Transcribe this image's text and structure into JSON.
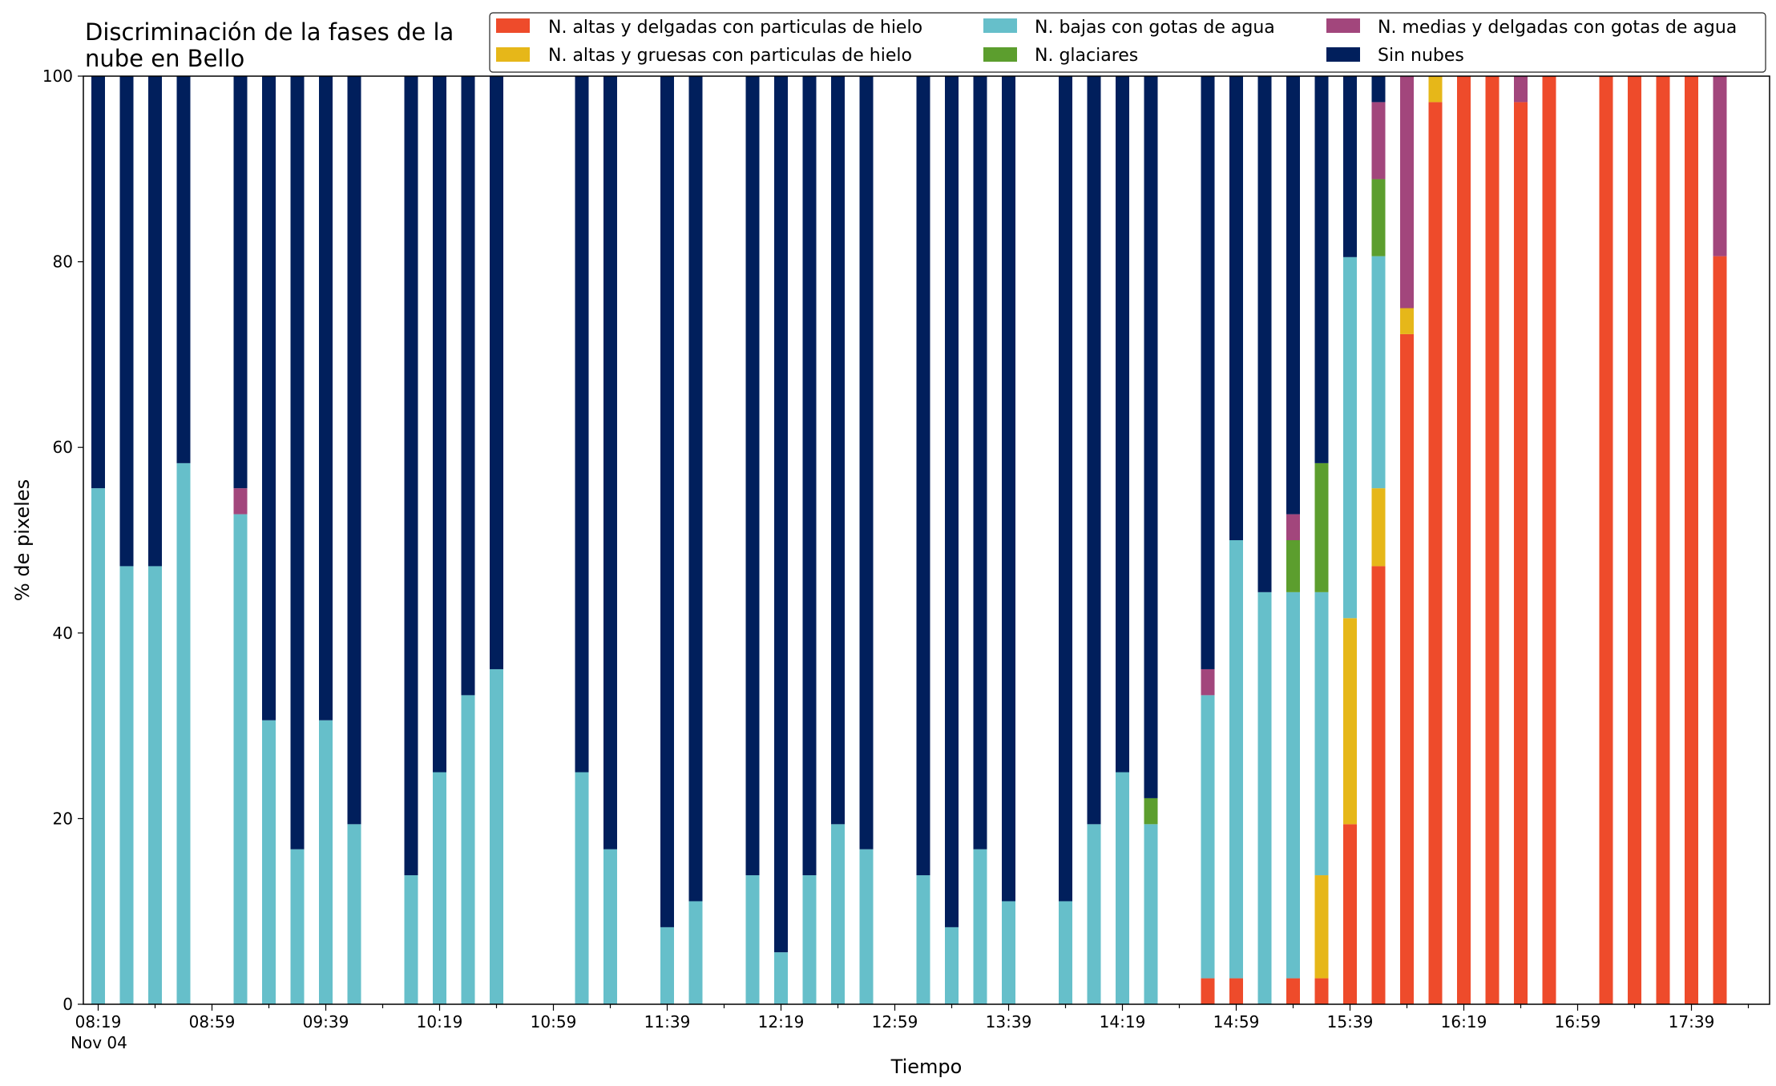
{
  "chart_data": {
    "type": "bar",
    "stacked": true,
    "title": "Discriminación de la fases de la nube en Bello",
    "title_lines": [
      "Discriminación de la fases de la",
      "nube en Bello"
    ],
    "xlabel": "Tiempo",
    "ylabel": "% de pixeles",
    "ylim": [
      0,
      100
    ],
    "y_ticks": [
      0,
      20,
      40,
      60,
      80,
      100
    ],
    "x_tick_labels": [
      "08:19",
      "08:59",
      "09:39",
      "10:19",
      "10:59",
      "11:39",
      "12:19",
      "12:59",
      "13:39",
      "14:19",
      "14:59",
      "15:39",
      "16:19",
      "16:59",
      "17:39"
    ],
    "x_date_label": "Nov 04",
    "x_start": "08:19",
    "x_step_minutes": 10,
    "legend_position": "top-right",
    "series": [
      {
        "name": "N. altas y delgadas con particulas de hielo",
        "color": "#EE4B2B"
      },
      {
        "name": "N. altas y gruesas con particulas de hielo",
        "color": "#E6B719"
      },
      {
        "name": "N. bajas con gotas de agua",
        "color": "#66BFCA"
      },
      {
        "name": "N. glaciares",
        "color": "#5C9E2E"
      },
      {
        "name": "N. medias y delgadas con gotas de agua",
        "color": "#A2467C"
      },
      {
        "name": "Sin nubes",
        "color": "#011F5C"
      }
    ],
    "bars": [
      {
        "x": "08:19",
        "stack": [
          0,
          0,
          55.6,
          0,
          0,
          44.4
        ]
      },
      {
        "x": "08:29",
        "stack": [
          0,
          0,
          47.2,
          0,
          0,
          52.8
        ]
      },
      {
        "x": "08:39",
        "stack": [
          0,
          0,
          47.2,
          0,
          0,
          52.8
        ]
      },
      {
        "x": "08:49",
        "stack": [
          0,
          0,
          58.3,
          0,
          0,
          41.7
        ]
      },
      {
        "x": "09:09",
        "stack": [
          0,
          0,
          52.8,
          0,
          2.8,
          44.4
        ]
      },
      {
        "x": "09:19",
        "stack": [
          0,
          0,
          30.6,
          0,
          0,
          69.4
        ]
      },
      {
        "x": "09:29",
        "stack": [
          0,
          0,
          16.7,
          0,
          0,
          83.3
        ]
      },
      {
        "x": "09:39",
        "stack": [
          0,
          0,
          30.6,
          0,
          0,
          69.4
        ]
      },
      {
        "x": "09:49",
        "stack": [
          0,
          0,
          19.4,
          0,
          0,
          80.6
        ]
      },
      {
        "x": "10:09",
        "stack": [
          0,
          0,
          13.9,
          0,
          0,
          86.1
        ]
      },
      {
        "x": "10:19",
        "stack": [
          0,
          0,
          25.0,
          0,
          0,
          75.0
        ]
      },
      {
        "x": "10:29",
        "stack": [
          0,
          0,
          33.3,
          0,
          0,
          66.7
        ]
      },
      {
        "x": "10:39",
        "stack": [
          0,
          0,
          36.1,
          0,
          0,
          63.9
        ]
      },
      {
        "x": "11:09",
        "stack": [
          0,
          0,
          25.0,
          0,
          0,
          75.0
        ]
      },
      {
        "x": "11:19",
        "stack": [
          0,
          0,
          16.7,
          0,
          0,
          83.3
        ]
      },
      {
        "x": "11:39",
        "stack": [
          0,
          0,
          8.3,
          0,
          0,
          91.7
        ]
      },
      {
        "x": "11:49",
        "stack": [
          0,
          0,
          11.1,
          0,
          0,
          88.9
        ]
      },
      {
        "x": "12:09",
        "stack": [
          0,
          0,
          13.9,
          0,
          0,
          86.1
        ]
      },
      {
        "x": "12:19",
        "stack": [
          0,
          0,
          5.6,
          0,
          0,
          94.4
        ]
      },
      {
        "x": "12:29",
        "stack": [
          0,
          0,
          13.9,
          0,
          0,
          86.1
        ]
      },
      {
        "x": "12:39",
        "stack": [
          0,
          0,
          19.4,
          0,
          0,
          80.6
        ]
      },
      {
        "x": "12:49",
        "stack": [
          0,
          0,
          16.7,
          0,
          0,
          83.3
        ]
      },
      {
        "x": "13:09",
        "stack": [
          0,
          0,
          13.9,
          0,
          0,
          86.1
        ]
      },
      {
        "x": "13:19",
        "stack": [
          0,
          0,
          8.3,
          0,
          0,
          91.7
        ]
      },
      {
        "x": "13:29",
        "stack": [
          0,
          0,
          16.7,
          0,
          0,
          83.3
        ]
      },
      {
        "x": "13:39",
        "stack": [
          0,
          0,
          11.1,
          0,
          0,
          88.9
        ]
      },
      {
        "x": "13:59",
        "stack": [
          0,
          0,
          11.1,
          0,
          0,
          88.9
        ]
      },
      {
        "x": "14:09",
        "stack": [
          0,
          0,
          19.4,
          0,
          0,
          80.6
        ]
      },
      {
        "x": "14:19",
        "stack": [
          0,
          0,
          25.0,
          0,
          0,
          75.0
        ]
      },
      {
        "x": "14:29",
        "stack": [
          0,
          0,
          19.4,
          2.8,
          0,
          77.8
        ]
      },
      {
        "x": "14:49",
        "stack": [
          2.8,
          0,
          30.5,
          0,
          2.8,
          63.9
        ]
      },
      {
        "x": "14:59",
        "stack": [
          2.8,
          0,
          47.2,
          0,
          0,
          50.0
        ]
      },
      {
        "x": "15:09",
        "stack": [
          0,
          0,
          44.4,
          0,
          0,
          55.6
        ]
      },
      {
        "x": "15:19",
        "stack": [
          2.8,
          0,
          41.6,
          5.6,
          2.8,
          47.2
        ]
      },
      {
        "x": "15:29",
        "stack": [
          2.8,
          11.1,
          30.5,
          13.9,
          0,
          41.7
        ]
      },
      {
        "x": "15:39",
        "stack": [
          19.4,
          22.2,
          38.9,
          0,
          0,
          19.5
        ]
      },
      {
        "x": "15:49",
        "stack": [
          47.2,
          8.4,
          25.0,
          8.3,
          8.3,
          2.8
        ]
      },
      {
        "x": "15:59",
        "stack": [
          72.2,
          2.8,
          0,
          0,
          25.0,
          0
        ]
      },
      {
        "x": "16:09",
        "stack": [
          97.2,
          2.8,
          0,
          0,
          0,
          0
        ]
      },
      {
        "x": "16:19",
        "stack": [
          100,
          0,
          0,
          0,
          0,
          0
        ]
      },
      {
        "x": "16:29",
        "stack": [
          100,
          0,
          0,
          0,
          0,
          0
        ]
      },
      {
        "x": "16:39",
        "stack": [
          97.2,
          0,
          0,
          0,
          2.8,
          0
        ]
      },
      {
        "x": "16:49",
        "stack": [
          100,
          0,
          0,
          0,
          0,
          0
        ]
      },
      {
        "x": "17:09",
        "stack": [
          100,
          0,
          0,
          0,
          0,
          0
        ]
      },
      {
        "x": "17:19",
        "stack": [
          100,
          0,
          0,
          0,
          0,
          0
        ]
      },
      {
        "x": "17:29",
        "stack": [
          100,
          0,
          0,
          0,
          0,
          0
        ]
      },
      {
        "x": "17:39",
        "stack": [
          100,
          0,
          0,
          0,
          0,
          0
        ]
      },
      {
        "x": "17:49",
        "stack": [
          80.6,
          0,
          0,
          0,
          19.4,
          0
        ]
      }
    ]
  }
}
